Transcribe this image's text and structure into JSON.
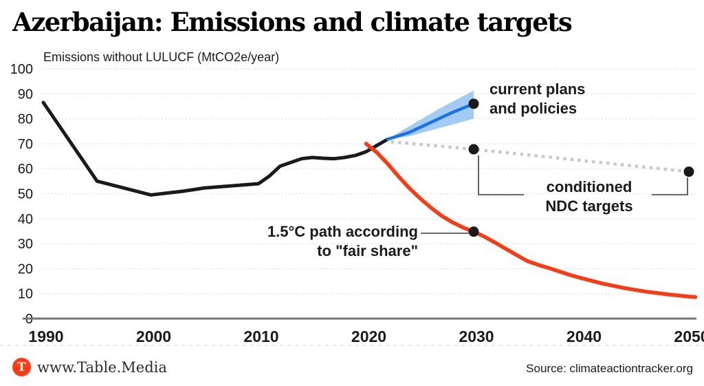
{
  "header": {
    "title": "Azerbaijan: Emissions and climate targets",
    "subtitle": "Emissions without LULUCF (MtCO2e/year)"
  },
  "annotations": {
    "current_plans": {
      "line1": "current plans",
      "line2": "and policies"
    },
    "ndc": {
      "line1": "conditioned",
      "line2": "NDC targets"
    },
    "fair": {
      "line1": "1.5°C path according",
      "line2": "to \"fair share\""
    }
  },
  "footer": {
    "brand_initial": "T",
    "brand": "www.Table.Media",
    "source": "Source: climateactiontracker.org"
  },
  "colors": {
    "historical": "#1a1a1a",
    "policies_line": "#1a73e8",
    "policies_band": "#a3cbf4",
    "ndc_dotted": "#c9c9c9",
    "fair_share": "#fa3a12",
    "grid": "#e7e4e0",
    "axis_baseline": "#757575",
    "marker": "#1a1a1a",
    "connector": "#3a3a3a",
    "brand_orange": "#fa3a12"
  },
  "chart_data": {
    "type": "line",
    "title": "Azerbaijan: Emissions and climate targets",
    "ylabel": "Emissions without LULUCF (MtCO2e/year)",
    "xlim": [
      1990,
      2052
    ],
    "ylim": [
      0,
      100
    ],
    "x_ticks": [
      "1990",
      "2000",
      "2010",
      "2020",
      "2030",
      "2040",
      "2050"
    ],
    "x_tick_years": [
      1990,
      2000,
      2010,
      2020,
      2030,
      2040,
      2050
    ],
    "y_ticks": [
      "0",
      "10",
      "20",
      "30",
      "40",
      "50",
      "60",
      "70",
      "80",
      "90",
      "100"
    ],
    "y_tick_values": [
      0,
      10,
      20,
      30,
      40,
      50,
      60,
      70,
      80,
      90,
      100
    ],
    "grid": "horizontal-dotted",
    "legend_position": "inline-annotations",
    "series": [
      {
        "name": "historical emissions",
        "style": "solid",
        "points": [
          [
            1990,
            86.5
          ],
          [
            1995,
            55
          ],
          [
            2000,
            49.5
          ],
          [
            2003,
            51
          ],
          [
            2005,
            52.3
          ],
          [
            2008,
            53.3
          ],
          [
            2010,
            54
          ],
          [
            2011,
            57
          ],
          [
            2012,
            61
          ],
          [
            2013,
            62.5
          ],
          [
            2014,
            64
          ],
          [
            2015,
            64.5
          ],
          [
            2016,
            64.2
          ],
          [
            2017,
            64
          ],
          [
            2018,
            64.5
          ],
          [
            2019,
            65.3
          ],
          [
            2020,
            66.8
          ],
          [
            2021,
            69.3
          ],
          [
            2022,
            71.8
          ]
        ]
      },
      {
        "name": "current plans and policies",
        "style": "solid",
        "points": [
          [
            2022,
            71.8
          ],
          [
            2024,
            74.5
          ],
          [
            2026,
            78.5
          ],
          [
            2028,
            82.5
          ],
          [
            2030,
            86
          ]
        ],
        "band_upper": [
          [
            2022,
            71.8
          ],
          [
            2024,
            77
          ],
          [
            2027,
            84.5
          ],
          [
            2030,
            91.3
          ]
        ],
        "band_lower": [
          [
            2022,
            71.8
          ],
          [
            2024,
            73
          ],
          [
            2030,
            80
          ]
        ],
        "markers": [
          [
            2030,
            86
          ]
        ]
      },
      {
        "name": "conditioned NDC targets",
        "style": "dotted",
        "points": [
          [
            2022.3,
            70.8
          ],
          [
            2030,
            67.8
          ],
          [
            2050,
            58.8
          ]
        ],
        "markers": [
          [
            2030,
            67.8
          ],
          [
            2050,
            58.8
          ]
        ]
      },
      {
        "name": "1.5°C path according to \"fair share\"",
        "style": "solid",
        "points": [
          [
            2020,
            70
          ],
          [
            2021,
            66.5
          ],
          [
            2022,
            62
          ],
          [
            2023,
            57
          ],
          [
            2024,
            52.3
          ],
          [
            2025,
            48.2
          ],
          [
            2026,
            44.5
          ],
          [
            2027,
            41.2
          ],
          [
            2028,
            38.6
          ],
          [
            2029,
            36.5
          ],
          [
            2030,
            34.8
          ],
          [
            2031,
            32.8
          ],
          [
            2032,
            30.4
          ],
          [
            2033,
            27.9
          ],
          [
            2034,
            25.4
          ],
          [
            2035,
            23
          ],
          [
            2036,
            21.5
          ],
          [
            2037,
            20.2
          ],
          [
            2038,
            18.8
          ],
          [
            2039,
            17.4
          ],
          [
            2040,
            16.2
          ],
          [
            2042,
            14
          ],
          [
            2044,
            12.2
          ],
          [
            2046,
            10.8
          ],
          [
            2048,
            9.7
          ],
          [
            2050,
            8.8
          ],
          [
            2050.6,
            8.6
          ]
        ],
        "markers": [
          [
            2030,
            34.8
          ]
        ]
      }
    ]
  }
}
